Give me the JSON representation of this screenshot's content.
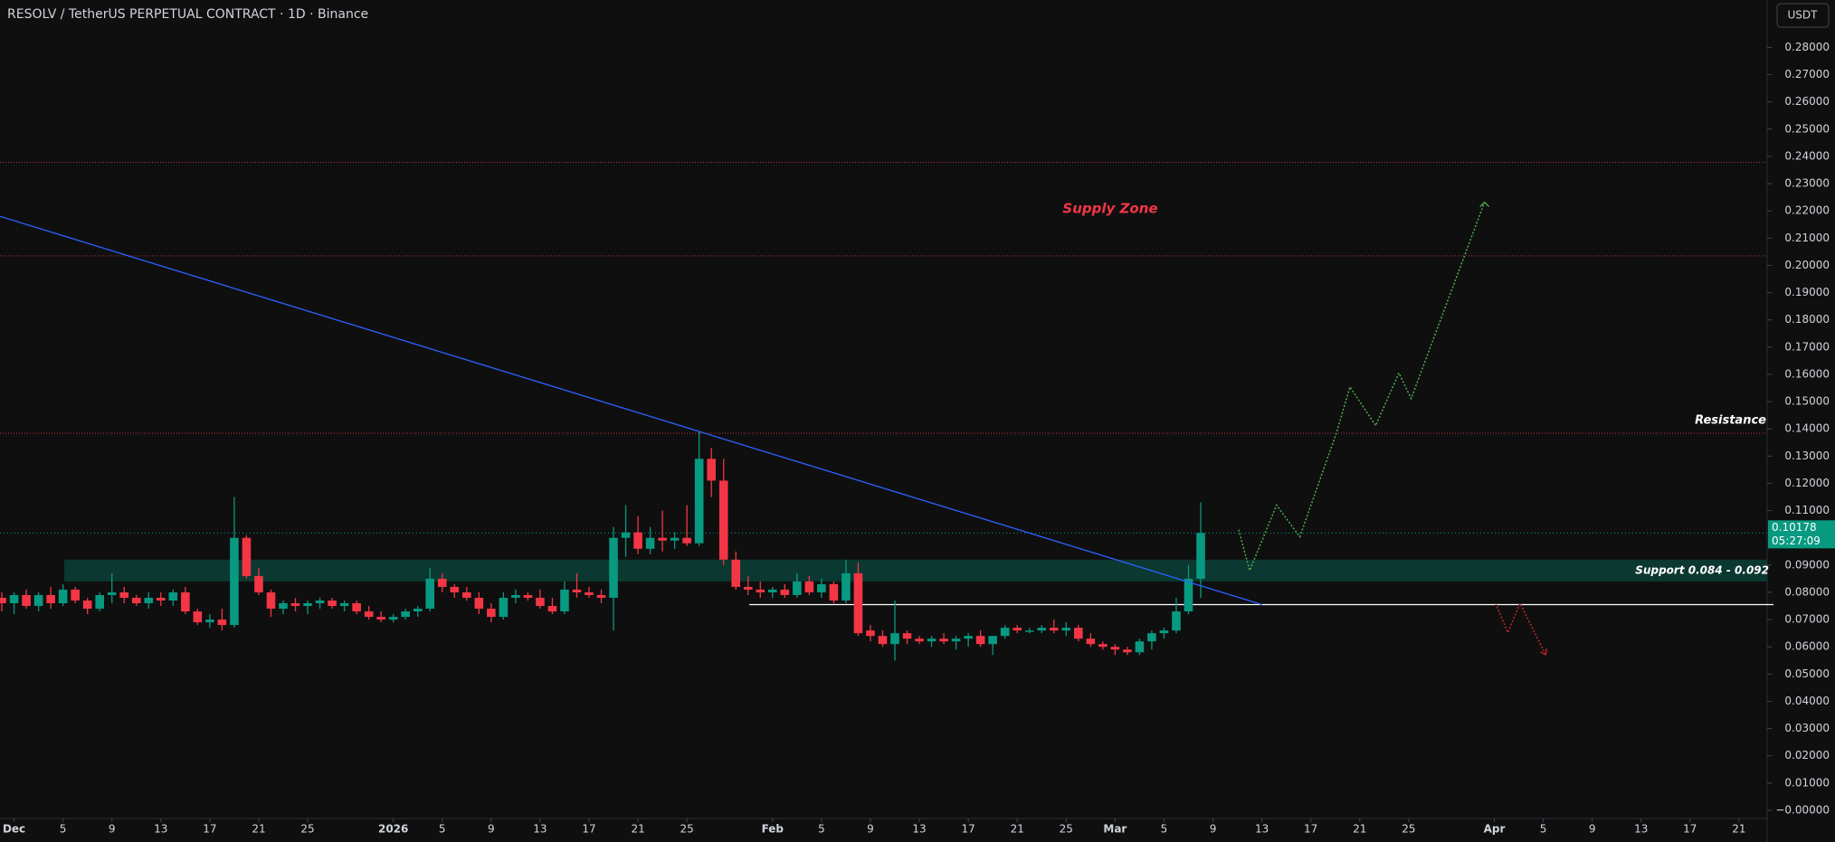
{
  "chart_data": {
    "type": "candlestick",
    "title": "RESOLV / TetherUS PERPETUAL CONTRACT · 1D · Binance",
    "currency": "USDT",
    "countdown": "05:27:09",
    "up_color": "#089981",
    "down_color": "#f23645",
    "x": [
      -1,
      0,
      1,
      2,
      3,
      4,
      5,
      6,
      7,
      8,
      9,
      10,
      11,
      12,
      13,
      14,
      15,
      16,
      17,
      18,
      19,
      20,
      21,
      22,
      23,
      24,
      25,
      26,
      27,
      28,
      29,
      30,
      31,
      32,
      33,
      34,
      35,
      36,
      37,
      38,
      39,
      40,
      41,
      42,
      43,
      44,
      45,
      46,
      47,
      48,
      49,
      50,
      51,
      52,
      53,
      54,
      55,
      56,
      57,
      58,
      59,
      60,
      61,
      62,
      63,
      64,
      65,
      66,
      67,
      68,
      69,
      70,
      71,
      72,
      73,
      74,
      75,
      76,
      77,
      78,
      79,
      80,
      81,
      82,
      83,
      84,
      85,
      86,
      87,
      88,
      89,
      90,
      91,
      92,
      93,
      94,
      95,
      96,
      97
    ],
    "open": [
      0.078,
      0.076,
      0.079,
      0.075,
      0.079,
      0.076,
      0.081,
      0.077,
      0.074,
      0.079,
      0.08,
      0.078,
      0.076,
      0.078,
      0.077,
      0.08,
      0.073,
      0.069,
      0.07,
      0.068,
      0.1,
      0.086,
      0.08,
      0.074,
      0.076,
      0.075,
      0.076,
      0.077,
      0.075,
      0.076,
      0.073,
      0.071,
      0.07,
      0.071,
      0.073,
      0.074,
      0.085,
      0.082,
      0.08,
      0.078,
      0.074,
      0.071,
      0.078,
      0.079,
      0.078,
      0.075,
      0.073,
      0.081,
      0.08,
      0.079,
      0.078,
      0.1,
      0.102,
      0.096,
      0.1,
      0.099,
      0.1,
      0.098,
      0.129,
      0.121,
      0.092,
      0.082,
      0.081,
      0.08,
      0.081,
      0.079,
      0.084,
      0.08,
      0.083,
      0.077,
      0.087,
      0.066,
      0.064,
      0.061,
      0.065,
      0.063,
      0.062,
      0.063,
      0.062,
      0.063,
      0.064,
      0.061,
      0.064,
      0.067,
      0.066,
      0.066,
      0.067,
      0.066,
      0.067,
      0.063,
      0.061,
      0.06,
      0.059,
      0.058,
      0.062,
      0.065,
      0.066,
      0.073,
      0.085
    ],
    "high": [
      0.08,
      0.08,
      0.081,
      0.08,
      0.082,
      0.083,
      0.082,
      0.078,
      0.08,
      0.087,
      0.082,
      0.079,
      0.08,
      0.08,
      0.081,
      0.082,
      0.074,
      0.072,
      0.074,
      0.115,
      0.101,
      0.089,
      0.081,
      0.077,
      0.078,
      0.077,
      0.078,
      0.078,
      0.077,
      0.077,
      0.075,
      0.073,
      0.072,
      0.074,
      0.075,
      0.089,
      0.087,
      0.083,
      0.082,
      0.08,
      0.076,
      0.08,
      0.081,
      0.08,
      0.081,
      0.078,
      0.084,
      0.087,
      0.082,
      0.081,
      0.104,
      0.112,
      0.108,
      0.104,
      0.11,
      0.102,
      0.112,
      0.139,
      0.133,
      0.129,
      0.095,
      0.086,
      0.084,
      0.082,
      0.083,
      0.087,
      0.086,
      0.085,
      0.084,
      0.092,
      0.091,
      0.068,
      0.066,
      0.077,
      0.066,
      0.064,
      0.064,
      0.065,
      0.064,
      0.065,
      0.066,
      0.064,
      0.068,
      0.068,
      0.067,
      0.068,
      0.07,
      0.069,
      0.068,
      0.065,
      0.062,
      0.061,
      0.06,
      0.063,
      0.066,
      0.067,
      0.078,
      0.09,
      0.113
    ],
    "low": [
      0.073,
      0.072,
      0.074,
      0.073,
      0.074,
      0.075,
      0.076,
      0.072,
      0.073,
      0.076,
      0.076,
      0.075,
      0.074,
      0.075,
      0.075,
      0.072,
      0.068,
      0.067,
      0.066,
      0.067,
      0.085,
      0.079,
      0.071,
      0.072,
      0.073,
      0.072,
      0.074,
      0.074,
      0.073,
      0.072,
      0.07,
      0.069,
      0.069,
      0.07,
      0.071,
      0.073,
      0.08,
      0.078,
      0.077,
      0.072,
      0.069,
      0.07,
      0.076,
      0.077,
      0.074,
      0.072,
      0.072,
      0.078,
      0.078,
      0.076,
      0.066,
      0.093,
      0.094,
      0.094,
      0.095,
      0.096,
      0.097,
      0.097,
      0.115,
      0.09,
      0.081,
      0.079,
      0.078,
      0.078,
      0.078,
      0.078,
      0.079,
      0.078,
      0.076,
      0.076,
      0.064,
      0.062,
      0.06,
      0.055,
      0.061,
      0.061,
      0.06,
      0.061,
      0.059,
      0.06,
      0.06,
      0.057,
      0.063,
      0.065,
      0.065,
      0.065,
      0.065,
      0.064,
      0.062,
      0.06,
      0.059,
      0.057,
      0.057,
      0.057,
      0.059,
      0.063,
      0.065,
      0.072,
      0.078
    ],
    "close": [
      0.076,
      0.079,
      0.075,
      0.079,
      0.076,
      0.081,
      0.077,
      0.074,
      0.079,
      0.08,
      0.078,
      0.076,
      0.078,
      0.077,
      0.08,
      0.073,
      0.069,
      0.07,
      0.068,
      0.1,
      0.086,
      0.08,
      0.074,
      0.076,
      0.075,
      0.076,
      0.077,
      0.075,
      0.076,
      0.073,
      0.071,
      0.07,
      0.071,
      0.073,
      0.074,
      0.085,
      0.082,
      0.08,
      0.078,
      0.074,
      0.071,
      0.078,
      0.079,
      0.078,
      0.075,
      0.073,
      0.081,
      0.08,
      0.079,
      0.078,
      0.1,
      0.102,
      0.096,
      0.1,
      0.099,
      0.1,
      0.098,
      0.129,
      0.121,
      0.092,
      0.082,
      0.081,
      0.08,
      0.081,
      0.079,
      0.084,
      0.08,
      0.083,
      0.077,
      0.087,
      0.065,
      0.064,
      0.061,
      0.065,
      0.063,
      0.062,
      0.063,
      0.062,
      0.063,
      0.064,
      0.061,
      0.064,
      0.067,
      0.066,
      0.066,
      0.067,
      0.066,
      0.067,
      0.063,
      0.061,
      0.06,
      0.059,
      0.058,
      0.062,
      0.065,
      0.066,
      0.073,
      0.085,
      0.10178
    ],
    "xlim": [
      -1.15,
      143.3
    ],
    "ylim": [
      -0.003,
      0.2974
    ],
    "yticks": [
      {
        "value": 0.28,
        "label": "0.28000"
      },
      {
        "value": 0.27,
        "label": "0.27000"
      },
      {
        "value": 0.26,
        "label": "0.26000"
      },
      {
        "value": 0.25,
        "label": "0.25000"
      },
      {
        "value": 0.24,
        "label": "0.24000"
      },
      {
        "value": 0.23,
        "label": "0.23000"
      },
      {
        "value": 0.22,
        "label": "0.22000"
      },
      {
        "value": 0.21,
        "label": "0.21000"
      },
      {
        "value": 0.2,
        "label": "0.20000"
      },
      {
        "value": 0.19,
        "label": "0.19000"
      },
      {
        "value": 0.18,
        "label": "0.18000"
      },
      {
        "value": 0.17,
        "label": "0.17000"
      },
      {
        "value": 0.16,
        "label": "0.16000"
      },
      {
        "value": 0.15,
        "label": "0.15000"
      },
      {
        "value": 0.14,
        "label": "0.14000"
      },
      {
        "value": 0.13,
        "label": "0.13000"
      },
      {
        "value": 0.12,
        "label": "0.12000"
      },
      {
        "value": 0.11,
        "label": "0.11000"
      },
      {
        "value": 0.1,
        "label": "0.10000"
      },
      {
        "value": 0.09,
        "label": "0.09000"
      },
      {
        "value": 0.08,
        "label": "0.08000"
      },
      {
        "value": 0.07,
        "label": "0.07000"
      },
      {
        "value": 0.06,
        "label": "0.06000"
      },
      {
        "value": 0.05,
        "label": "0.05000"
      },
      {
        "value": 0.04,
        "label": "0.04000"
      },
      {
        "value": 0.03,
        "label": "0.03000"
      },
      {
        "value": 0.02,
        "label": "0.02000"
      },
      {
        "value": 0.01,
        "label": "0.01000"
      },
      {
        "value": 0,
        "label": "−0.00000"
      }
    ],
    "xticks": [
      {
        "value": 0,
        "label": "Dec"
      },
      {
        "value": 4,
        "label": "5"
      },
      {
        "value": 8,
        "label": "9"
      },
      {
        "value": 12,
        "label": "13"
      },
      {
        "value": 16,
        "label": "17"
      },
      {
        "value": 20,
        "label": "21"
      },
      {
        "value": 24,
        "label": "25"
      },
      {
        "value": 31,
        "label": "2026"
      },
      {
        "value": 35,
        "label": "5"
      },
      {
        "value": 39,
        "label": "9"
      },
      {
        "value": 43,
        "label": "13"
      },
      {
        "value": 47,
        "label": "17"
      },
      {
        "value": 51,
        "label": "21"
      },
      {
        "value": 55,
        "label": "25"
      },
      {
        "value": 62,
        "label": "Feb"
      },
      {
        "value": 66,
        "label": "5"
      },
      {
        "value": 70,
        "label": "9"
      },
      {
        "value": 74,
        "label": "13"
      },
      {
        "value": 78,
        "label": "17"
      },
      {
        "value": 82,
        "label": "21"
      },
      {
        "value": 86,
        "label": "25"
      },
      {
        "value": 90,
        "label": "Mar"
      },
      {
        "value": 94,
        "label": "5"
      },
      {
        "value": 98,
        "label": "9"
      },
      {
        "value": 102,
        "label": "13"
      },
      {
        "value": 106,
        "label": "17"
      },
      {
        "value": 110,
        "label": "21"
      },
      {
        "value": 114,
        "label": "25"
      },
      {
        "value": 121,
        "label": "Apr"
      },
      {
        "value": 125,
        "label": "5"
      },
      {
        "value": 129,
        "label": "9"
      },
      {
        "value": 133,
        "label": "13"
      },
      {
        "value": 137,
        "label": "17"
      },
      {
        "value": 141,
        "label": "21"
      }
    ],
    "supply_zone": {
      "label": "Supply Zone",
      "lower": 0.2035,
      "upper": 0.2378,
      "color": "#f23645"
    },
    "resistance": {
      "label": "Resistance",
      "value": 0.1384,
      "color": "#f23645"
    },
    "support_zone": {
      "label": "Support 0.084 - 0.092",
      "lower": 0.084,
      "upper": 0.092,
      "start": 4.1,
      "color": "#0c3b33"
    },
    "support_line": {
      "value": 0.0755,
      "start": 60.1,
      "color": "#ffffff"
    },
    "trendline": {
      "x": [
        -1.15,
        102
      ],
      "y": [
        0.218,
        0.0755
      ],
      "color": "#2962ff"
    },
    "bull_projection": {
      "x": [
        100.1,
        101,
        103.2,
        105.1,
        108.1,
        109.2,
        111.3,
        113.2,
        114.2,
        120.2
      ],
      "y": [
        0.103,
        0.088,
        0.112,
        0.1004,
        0.1386,
        0.1554,
        0.1412,
        0.1605,
        0.1511,
        0.2232
      ],
      "color": "#4caf50"
    },
    "bear_projection": {
      "x": [
        121.1,
        122.1,
        123.1,
        125.2
      ],
      "y": [
        0.076,
        0.0652,
        0.076,
        0.0571
      ],
      "color": "#c62828"
    }
  }
}
